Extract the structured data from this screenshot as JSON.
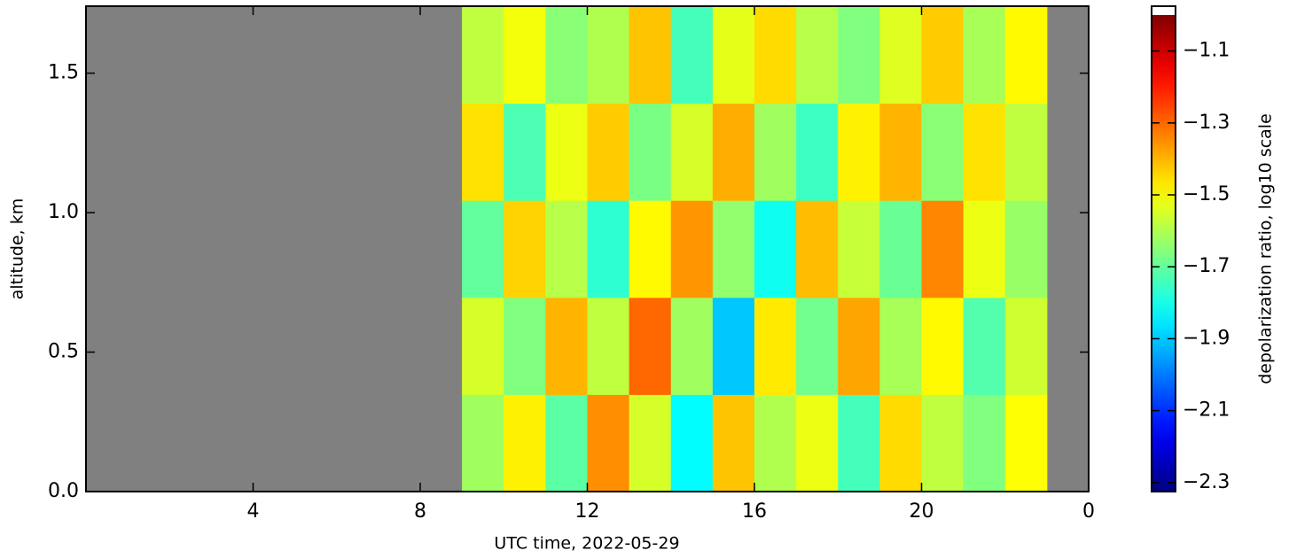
{
  "chart_data": {
    "type": "heatmap",
    "xlabel": "UTC time,  2022-05-29",
    "ylabel": "altitude, km",
    "colorbar_label": "depolarization ratio, log10 scale",
    "colormap": "jet",
    "nan_color": "#808080",
    "over_color": "#ffffff",
    "xlim": [
      0,
      24
    ],
    "xticks": [
      4,
      8,
      12,
      16,
      20,
      {
        "value": 24,
        "label": "0"
      }
    ],
    "ylim": [
      0,
      1.74
    ],
    "yticks": [
      {
        "value": 0,
        "label": "0.0"
      },
      0.5,
      {
        "value": 1,
        "label": "1.0"
      },
      1.5
    ],
    "clim": [
      -2.325,
      -1.0
    ],
    "cticks": [
      -1.1,
      -1.3,
      -1.5,
      -1.7,
      -1.9,
      -2.1,
      -2.3
    ],
    "z": [
      [
        null,
        null,
        null,
        null,
        null,
        null,
        null,
        null,
        null,
        -1.62,
        -1.48,
        -1.71,
        -1.35,
        -1.55,
        -1.83,
        -1.42,
        -1.6,
        -1.52,
        -1.74,
        -1.45,
        -1.58,
        -1.66,
        -1.5,
        null
      ],
      [
        null,
        null,
        null,
        null,
        null,
        null,
        null,
        null,
        null,
        -1.55,
        -1.66,
        -1.4,
        -1.58,
        -1.3,
        -1.62,
        -1.9,
        -1.47,
        -1.68,
        -1.38,
        -1.61,
        -1.49,
        -1.72,
        -1.56,
        null
      ],
      [
        null,
        null,
        null,
        null,
        null,
        null,
        null,
        null,
        null,
        -1.7,
        -1.44,
        -1.59,
        -1.77,
        -1.49,
        -1.36,
        -1.64,
        -1.81,
        -1.41,
        -1.57,
        -1.69,
        -1.34,
        -1.52,
        -1.63,
        null
      ],
      [
        null,
        null,
        null,
        null,
        null,
        null,
        null,
        null,
        null,
        -1.46,
        -1.73,
        -1.52,
        -1.43,
        -1.67,
        -1.55,
        -1.39,
        -1.62,
        -1.75,
        -1.48,
        -1.4,
        -1.65,
        -1.46,
        -1.58,
        null
      ],
      [
        null,
        null,
        null,
        null,
        null,
        null,
        null,
        null,
        null,
        -1.58,
        -1.51,
        -1.65,
        -1.6,
        -1.42,
        -1.74,
        -1.53,
        -1.45,
        -1.59,
        -1.66,
        -1.54,
        -1.43,
        -1.61,
        -1.49,
        null
      ]
    ]
  }
}
